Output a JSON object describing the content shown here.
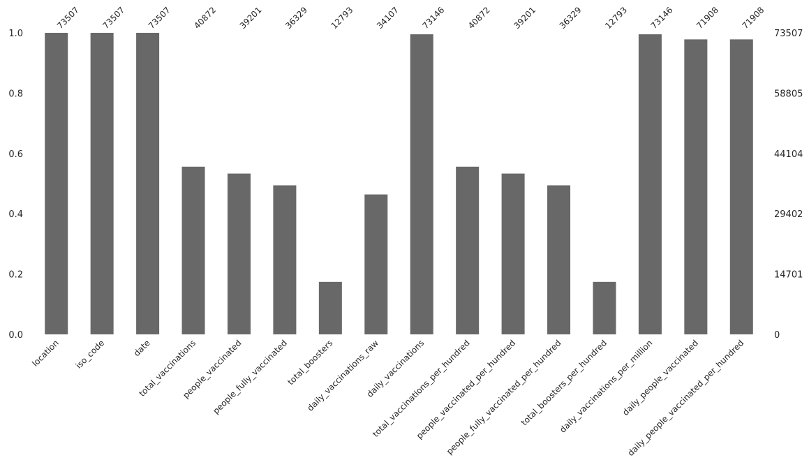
{
  "chart_data": {
    "type": "bar",
    "categories": [
      "location",
      "iso_code",
      "date",
      "total_vaccinations",
      "people_vaccinated",
      "people_fully_vaccinated",
      "total_boosters",
      "daily_vaccinations_raw",
      "daily_vaccinations",
      "total_vaccinations_per_hundred",
      "people_vaccinated_per_hundred",
      "people_fully_vaccinated_per_hundred",
      "total_boosters_per_hundred",
      "daily_vaccinations_per_million",
      "daily_people_vaccinated",
      "daily_people_vaccinated_per_hundred"
    ],
    "values": [
      73507,
      73507,
      73507,
      40872,
      39201,
      36329,
      12793,
      34107,
      73146,
      40872,
      39201,
      36329,
      12793,
      73146,
      71908,
      71908
    ],
    "total": 73507,
    "left_axis": {
      "ticks": [
        "0.0",
        "0.2",
        "0.4",
        "0.6",
        "0.8",
        "1.0"
      ],
      "range": [
        0,
        1
      ]
    },
    "right_axis": {
      "ticks": [
        "0",
        "14701",
        "29402",
        "44104",
        "58805",
        "73507"
      ]
    },
    "bar_color": "#686868",
    "grid": false,
    "title": "",
    "xlabel": "",
    "ylabel": ""
  }
}
